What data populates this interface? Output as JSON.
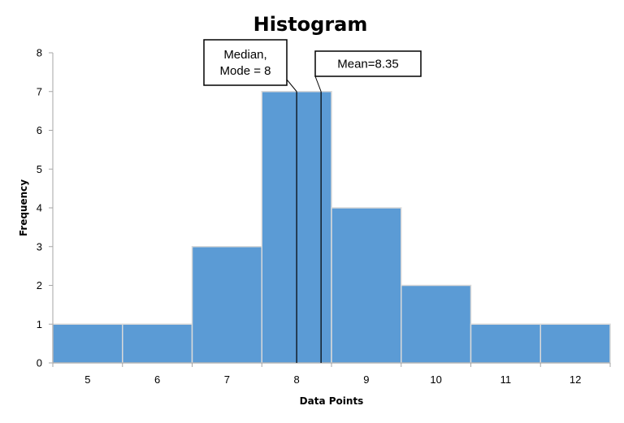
{
  "chart_data": {
    "type": "bar",
    "title": "Histogram",
    "xlabel": "Data Points",
    "ylabel": "Frequency",
    "categories": [
      "5",
      "6",
      "7",
      "8",
      "9",
      "10",
      "11",
      "12"
    ],
    "values": [
      1,
      1,
      3,
      7,
      4,
      2,
      1,
      1
    ],
    "ylim": [
      0,
      8
    ],
    "yticks": [
      "0",
      "1",
      "2",
      "3",
      "4",
      "5",
      "6",
      "7",
      "8"
    ],
    "grid": false,
    "legend": "none",
    "bar_color": "#5b9bd5",
    "bar_edge_color": "#d9d9d9",
    "annotations": [
      {
        "text_lines": [
          "Median,",
          "Mode = 8"
        ],
        "value": 8
      },
      {
        "text_lines": [
          "Mean=8.35"
        ],
        "value": 8.35
      }
    ]
  }
}
